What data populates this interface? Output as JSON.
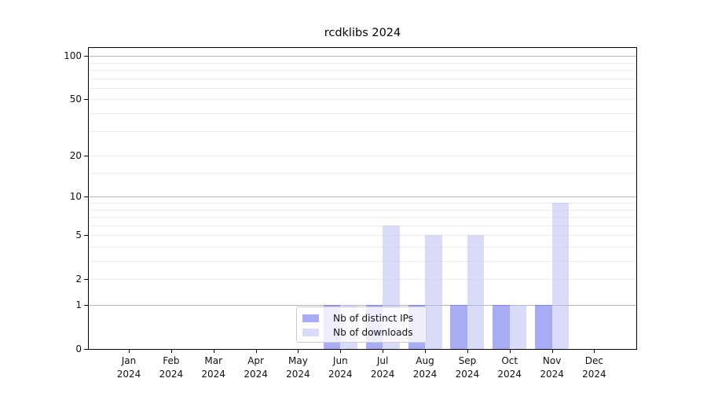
{
  "chart_data": {
    "type": "bar",
    "title": "rcdklibs 2024",
    "categories": [
      "Jan",
      "Feb",
      "Mar",
      "Apr",
      "May",
      "Jun",
      "Jul",
      "Aug",
      "Sep",
      "Oct",
      "Nov",
      "Dec"
    ],
    "year_label": "2024",
    "series": [
      {
        "name": "Nb of distinct IPs",
        "color_hex": "#a8acf5",
        "css_color": "rgba(81,89,235,0.5)",
        "values": [
          0,
          0,
          0,
          0,
          0,
          1,
          1,
          1,
          1,
          1,
          1,
          0
        ]
      },
      {
        "name": "Nb of downloads",
        "color_hex": "#d9dbf9",
        "css_color": "rgba(179,183,243,0.5)",
        "values": [
          0,
          0,
          0,
          0,
          0,
          1,
          6,
          5,
          5,
          1,
          9,
          0
        ]
      }
    ],
    "y_axis": {
      "scale": "log1p",
      "tick_values": [
        0,
        1,
        2,
        5,
        10,
        20,
        50,
        100
      ],
      "ylim": [
        0,
        113
      ],
      "grid_major_values": [
        1,
        10,
        100
      ],
      "grid_minor_values": [
        2,
        3,
        4,
        5,
        6,
        7,
        8,
        9,
        15,
        20,
        30,
        40,
        50,
        60,
        70,
        80,
        90
      ]
    },
    "legend": {
      "position": "lower-center",
      "entries": [
        "Nb of distinct IPs",
        "Nb of downloads"
      ]
    },
    "colors": {
      "grid_major": "#b3b3b3",
      "grid_minor": "#ededed",
      "axis": "#000000",
      "legend_border": "#cccccc",
      "legend_bg": "rgba(255,255,255,0.8)",
      "text": "#111111"
    },
    "grid": "horizontal"
  }
}
